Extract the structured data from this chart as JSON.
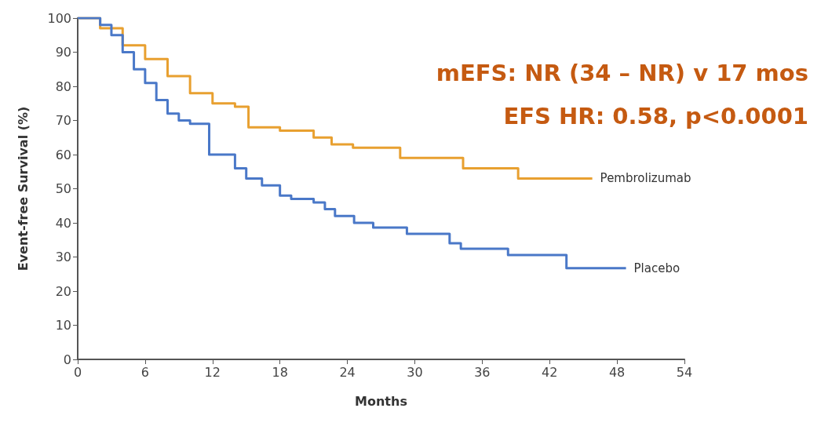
{
  "chart_data": {
    "type": "step",
    "xlabel": "Months",
    "ylabel": "Event-free Survival (%)",
    "xlim": [
      0,
      54
    ],
    "xticks": [
      0,
      6,
      12,
      18,
      24,
      30,
      36,
      42,
      48,
      54
    ],
    "ylim": [
      0,
      100
    ],
    "yticks": [
      0,
      10,
      20,
      30,
      40,
      50,
      60,
      70,
      80,
      90,
      100
    ],
    "grid": false,
    "legend": false,
    "marker": "none",
    "line_style": "solid",
    "annotations": [
      "mEFS: NR (34 – NR) v 17 mos",
      "EFS HR: 0.58, p<0.0001"
    ],
    "series": [
      {
        "name": "Pembrolizumab",
        "color": "#e8a030",
        "x": [
          0,
          2,
          4,
          6,
          8,
          10,
          12,
          14,
          15.2,
          18,
          21,
          22.6,
          24.5,
          28.7,
          34.3,
          39.2,
          45.8
        ],
        "values": [
          100,
          97,
          92,
          88,
          83,
          78,
          75,
          74,
          68,
          67,
          65,
          63,
          62,
          59,
          56,
          53,
          53
        ]
      },
      {
        "name": "Placebo",
        "color": "#4a78c8",
        "x": [
          0,
          2,
          3,
          4,
          5,
          6,
          7,
          8,
          9,
          10,
          10.8,
          11.7,
          14,
          15,
          16.4,
          18,
          19,
          21,
          22,
          22.9,
          24.6,
          26.3,
          29.3,
          33.1,
          34.1,
          38.3,
          43.5,
          48.8
        ],
        "values": [
          100,
          98,
          95,
          90,
          85,
          81,
          76,
          72,
          70,
          69,
          69,
          60,
          56,
          53,
          51,
          48,
          47,
          46,
          44,
          42,
          40,
          38.6,
          36.8,
          34,
          32.4,
          30.6,
          26.7,
          26.7
        ]
      }
    ]
  }
}
